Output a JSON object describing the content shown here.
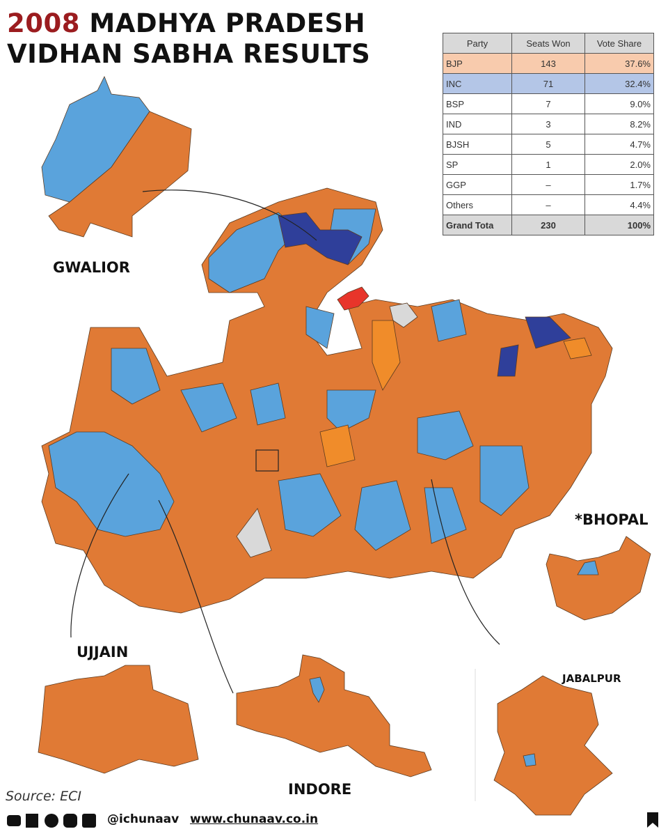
{
  "title": {
    "year": "2008",
    "line1": "MADHYA PRADESH",
    "line2": "VIDHAN SABHA RESULTS"
  },
  "table": {
    "columns": [
      "Party",
      "Seats Won",
      "Vote Share"
    ],
    "rows": [
      [
        "BJP",
        "143",
        "37.6%"
      ],
      [
        "INC",
        "71",
        "32.4%"
      ],
      [
        "BSP",
        "7",
        "9.0%"
      ],
      [
        "IND",
        "3",
        "8.2%"
      ],
      [
        "BJSH",
        "5",
        "4.7%"
      ],
      [
        "SP",
        "1",
        "2.0%"
      ],
      [
        "GGP",
        "–",
        "1.7%"
      ],
      [
        "Others",
        "–",
        "4.4%"
      ],
      [
        "Grand Tota",
        "230",
        "100%"
      ]
    ]
  },
  "labels": [
    "GWALIOR",
    "*BHOPAL",
    "UJJAIN",
    "INDORE",
    "JABALPUR"
  ],
  "footer": {
    "source": "Source: ECI",
    "handle": "@ichunaav",
    "website": "www.chunaav.co.in"
  }
}
